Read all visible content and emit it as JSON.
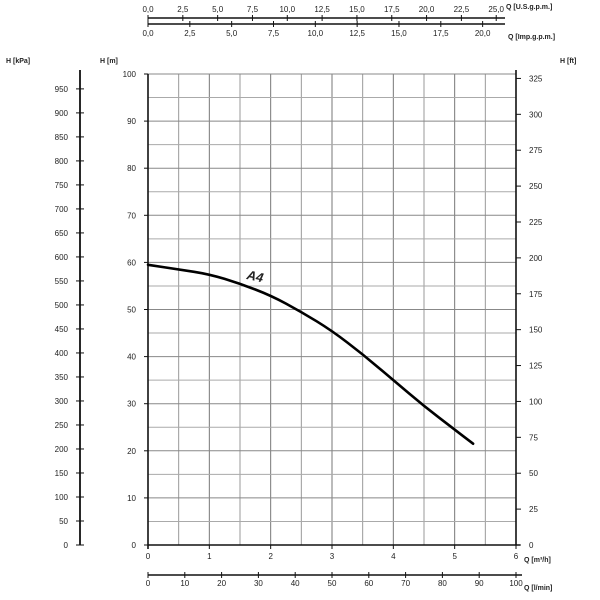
{
  "chart_data": {
    "type": "line",
    "title": "",
    "grid": true,
    "series": [
      {
        "name": "A4",
        "x_m3h": [
          0,
          0.5,
          1.0,
          1.5,
          2.0,
          2.5,
          3.0,
          3.5,
          4.0,
          4.5,
          5.0,
          5.3
        ],
        "y_m": [
          59.5,
          58.5,
          57.5,
          55.5,
          53,
          49.5,
          45.5,
          40.5,
          35,
          29.5,
          24.5,
          21.5
        ]
      }
    ],
    "axes": {
      "left_kpa": {
        "label": "H [kPa]",
        "ticks": [
          "0",
          "50",
          "100",
          "150",
          "200",
          "250",
          "300",
          "350",
          "400",
          "450",
          "500",
          "550",
          "600",
          "650",
          "700",
          "750",
          "800",
          "850",
          "900",
          "950"
        ]
      },
      "left_m": {
        "label": "H [m]",
        "range": [
          0,
          100
        ],
        "ticks": [
          "0",
          "10",
          "20",
          "30",
          "40",
          "50",
          "60",
          "70",
          "80",
          "90",
          "100"
        ]
      },
      "right_ft": {
        "label": "H [ft]",
        "ticks": [
          "0",
          "25",
          "50",
          "75",
          "100",
          "125",
          "150",
          "175",
          "200",
          "225",
          "250",
          "275",
          "300",
          "325"
        ]
      },
      "bottom_m3h": {
        "label": "Q [m³/h]",
        "range": [
          0,
          6
        ],
        "ticks": [
          "0",
          "1",
          "2",
          "3",
          "4",
          "5",
          "6"
        ]
      },
      "bottom_lmin": {
        "label": "Q [l/min]",
        "ticks": [
          "0",
          "10",
          "20",
          "30",
          "40",
          "50",
          "60",
          "70",
          "80",
          "90",
          "100"
        ]
      },
      "top_usgpm": {
        "label": "Q [U.S.g.p.m.]",
        "ticks": [
          "0,0",
          "2,5",
          "5,0",
          "7,5",
          "10,0",
          "12,5",
          "15,0",
          "17,5",
          "20,0",
          "22,5",
          "25,0"
        ]
      },
      "top_impgpm": {
        "label": "Q [Imp.g.p.m.]",
        "ticks": [
          "0,0",
          "2,5",
          "5,0",
          "7,5",
          "10,0",
          "12,5",
          "15,0",
          "17,5",
          "20,0"
        ]
      }
    }
  }
}
